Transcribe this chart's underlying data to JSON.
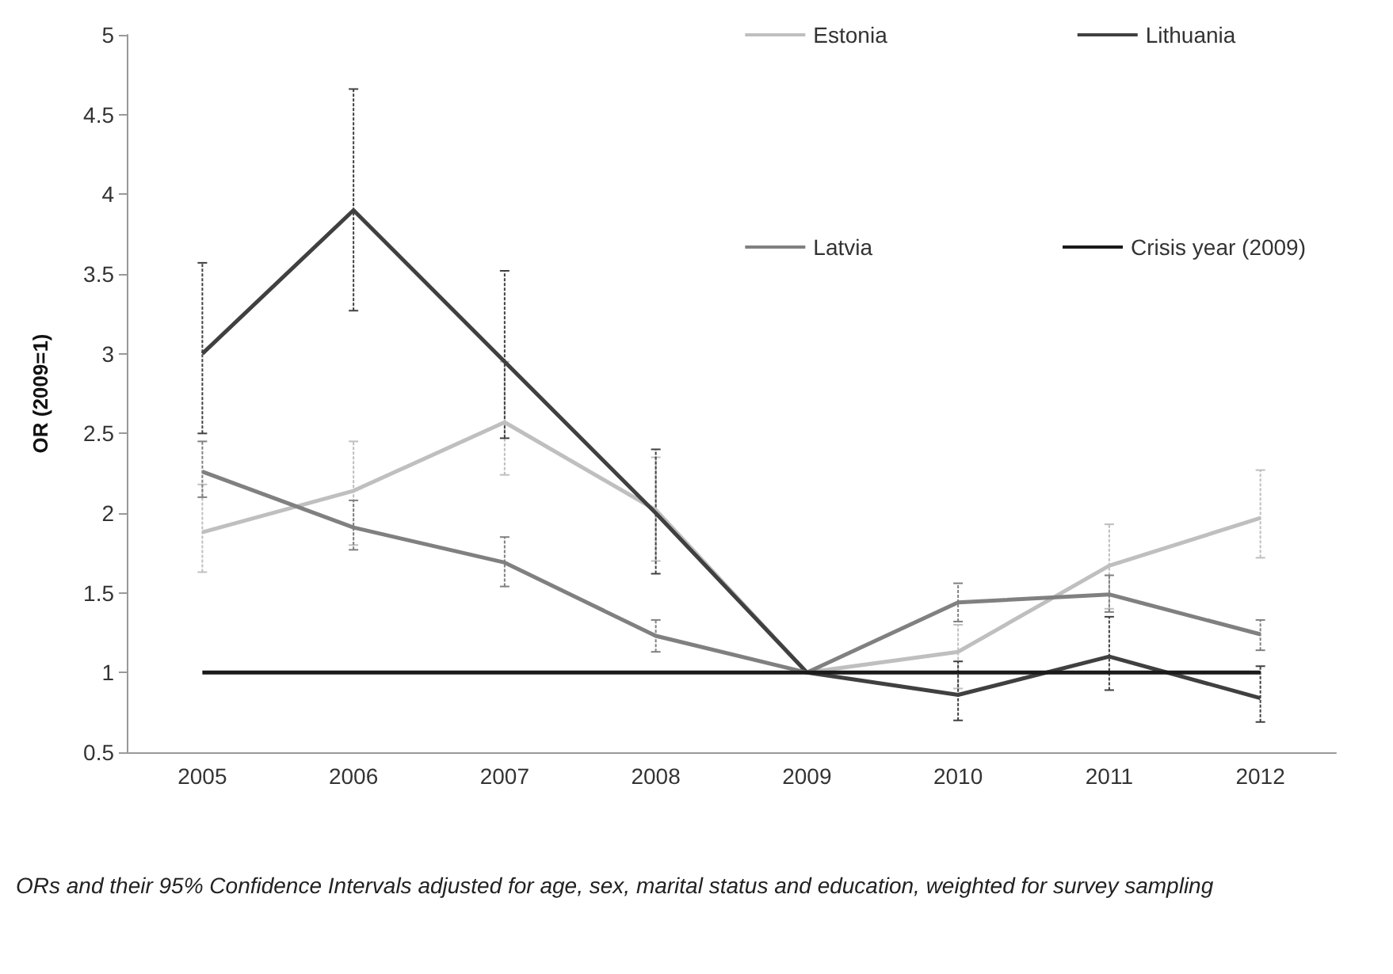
{
  "chart_data": {
    "type": "line",
    "ylabel": "OR (2009=1)",
    "categories": [
      "2005",
      "2006",
      "2007",
      "2008",
      "2009",
      "2010",
      "2011",
      "2012"
    ],
    "series": [
      {
        "name": "Estonia",
        "color": "#bfbfbf",
        "values": [
          1.88,
          2.14,
          2.57,
          2.02,
          1,
          1.13,
          1.67,
          1.97
        ],
        "errors": [
          [
            1.63,
            2.18
          ],
          [
            1.8,
            2.45
          ],
          [
            2.24,
            2.95
          ],
          [
            1.7,
            2.35
          ],
          null,
          [
            0.9,
            1.3
          ],
          [
            1.4,
            1.93
          ],
          [
            1.72,
            2.27
          ]
        ]
      },
      {
        "name": "Lithuania",
        "color": "#404040",
        "values": [
          3.0,
          3.9,
          2.95,
          2.0,
          1,
          0.86,
          1.1,
          0.84
        ],
        "errors": [
          [
            2.5,
            3.57
          ],
          [
            3.27,
            4.66
          ],
          [
            2.47,
            3.52
          ],
          [
            1.62,
            2.4
          ],
          null,
          [
            0.7,
            1.07
          ],
          [
            0.89,
            1.35
          ],
          [
            0.69,
            1.04
          ]
        ]
      },
      {
        "name": "Latvia",
        "color": "#808080",
        "values": [
          2.26,
          1.91,
          1.69,
          1.23,
          1,
          1.44,
          1.49,
          1.24
        ],
        "errors": [
          [
            2.1,
            2.45
          ],
          [
            1.77,
            2.08
          ],
          [
            1.54,
            1.85
          ],
          [
            1.13,
            1.33
          ],
          null,
          [
            1.32,
            1.56
          ],
          [
            1.38,
            1.61
          ],
          [
            1.14,
            1.33
          ]
        ]
      },
      {
        "name": "Crisis year (2009)",
        "color": "#1a1a1a",
        "values": [
          1,
          1,
          1,
          1,
          1,
          1,
          1,
          1
        ]
      }
    ],
    "ylim": [
      0.5,
      5
    ],
    "yticks": [
      0.5,
      1,
      1.5,
      2,
      2.5,
      3,
      3.5,
      4,
      4.5,
      5
    ],
    "grid": false,
    "legend": "top right",
    "marker": "none",
    "annotations": [
      "ORs and their 95% Confidence Intervals adjusted for age, sex, marital status and education, weighted for survey sampling"
    ]
  }
}
